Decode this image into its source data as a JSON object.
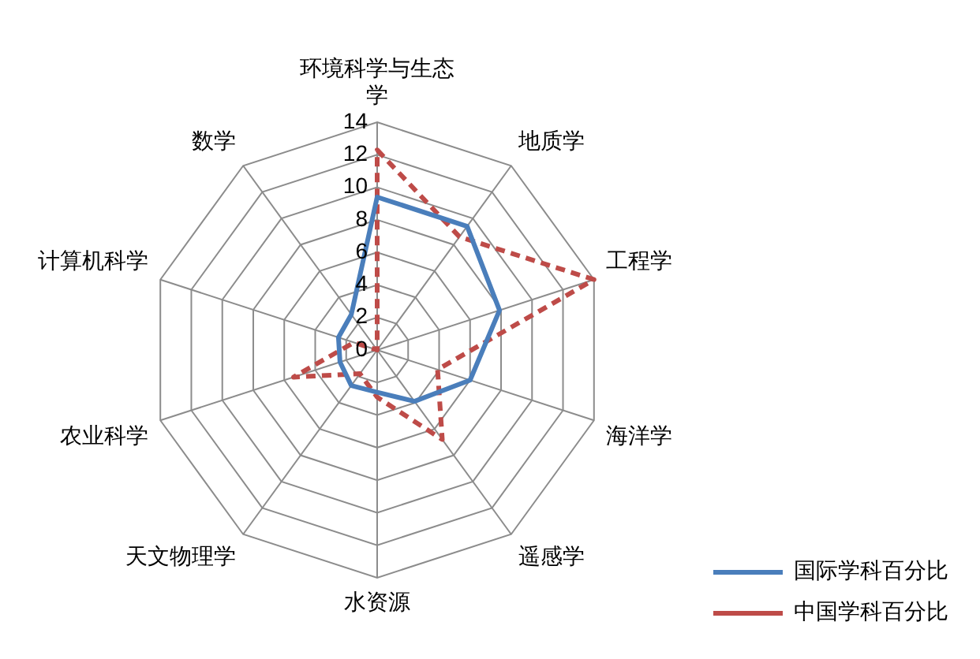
{
  "chart_data": {
    "type": "radar",
    "categories": [
      "环境科学与生态学",
      "地质学",
      "工程学",
      "海洋学",
      "遥感学",
      "水资源",
      "天文物理学",
      "农业科学",
      "计算机科学",
      "数学"
    ],
    "series": [
      {
        "name": "国际学科百分比",
        "color": "#4a7ebb",
        "line_style": "solid",
        "values": [
          9.4,
          9.4,
          7.9,
          6.0,
          3.9,
          2.6,
          2.7,
          2.4,
          2.5,
          2.7
        ]
      },
      {
        "name": "中国学科百分比",
        "color": "#be4b48",
        "line_style": "dashed",
        "values": [
          12.3,
          8.6,
          14,
          3.9,
          6.8,
          2.9,
          1.8,
          5.4,
          1.5,
          0
        ]
      }
    ],
    "ylim": [
      0,
      14
    ],
    "yticks": [
      0,
      2,
      4,
      6,
      8,
      10,
      12,
      14
    ],
    "grid": true,
    "legend": "bottom right",
    "marker": "none"
  }
}
